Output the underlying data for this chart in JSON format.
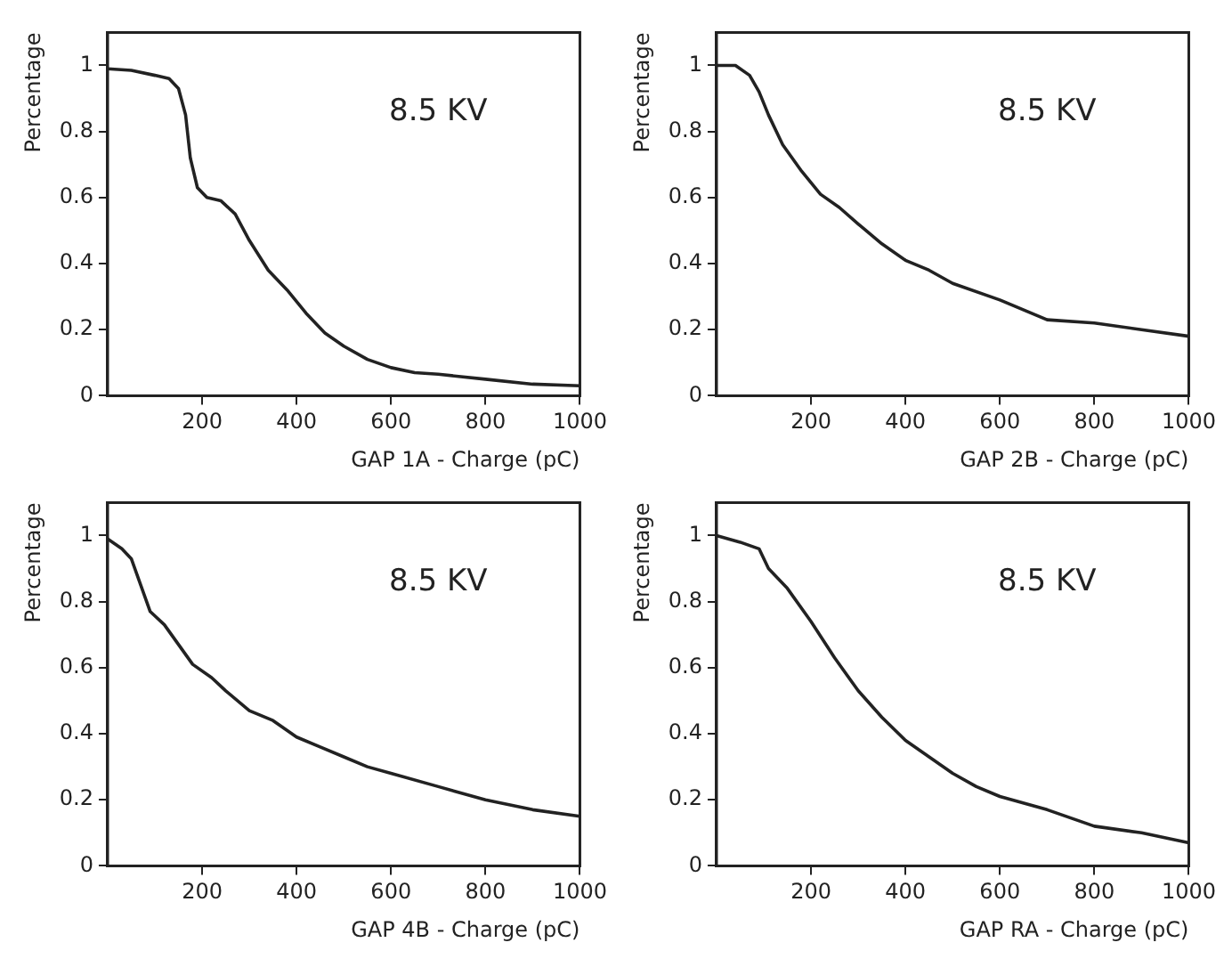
{
  "chart_data": [
    {
      "type": "line",
      "xlabel": "GAP 1A - Charge (pC)",
      "ylabel": "Percentage",
      "annotations": [
        "8.5 KV"
      ],
      "xlim": [
        0,
        1000
      ],
      "xticks": [
        200,
        400,
        600,
        800,
        1000
      ],
      "ylim": [
        0,
        1.1
      ],
      "yticks": [
        0,
        0.2,
        0.4,
        0.6,
        0.8,
        1
      ],
      "marker": "none",
      "legend": false,
      "series": [
        {
          "color": "#222222",
          "x": [
            0,
            50,
            100,
            130,
            150,
            165,
            175,
            190,
            210,
            240,
            270,
            300,
            340,
            380,
            420,
            460,
            500,
            550,
            600,
            650,
            700,
            800,
            900,
            1000
          ],
          "values": [
            0.99,
            0.985,
            0.97,
            0.96,
            0.93,
            0.85,
            0.72,
            0.63,
            0.6,
            0.59,
            0.55,
            0.47,
            0.38,
            0.32,
            0.25,
            0.19,
            0.15,
            0.11,
            0.085,
            0.07,
            0.065,
            0.05,
            0.035,
            0.03
          ]
        }
      ]
    },
    {
      "type": "line",
      "xlabel": "GAP 2B - Charge (pC)",
      "ylabel": "Percentage",
      "annotations": [
        "8.5 KV"
      ],
      "xlim": [
        0,
        1000
      ],
      "xticks": [
        200,
        400,
        600,
        800,
        1000
      ],
      "ylim": [
        0,
        1.1
      ],
      "yticks": [
        0,
        0.2,
        0.4,
        0.6,
        0.8,
        1
      ],
      "marker": "none",
      "legend": false,
      "series": [
        {
          "color": "#222222",
          "x": [
            0,
            40,
            70,
            90,
            110,
            140,
            180,
            220,
            260,
            300,
            350,
            400,
            450,
            500,
            600,
            700,
            800,
            900,
            1000
          ],
          "values": [
            1,
            1,
            0.97,
            0.92,
            0.85,
            0.76,
            0.68,
            0.61,
            0.57,
            0.52,
            0.46,
            0.41,
            0.38,
            0.34,
            0.29,
            0.23,
            0.22,
            0.2,
            0.18
          ]
        }
      ]
    },
    {
      "type": "line",
      "xlabel": "GAP 4B - Charge (pC)",
      "ylabel": "Percentage",
      "annotations": [
        "8.5 KV"
      ],
      "xlim": [
        0,
        1000
      ],
      "xticks": [
        200,
        400,
        600,
        800,
        1000
      ],
      "ylim": [
        0,
        1.1
      ],
      "yticks": [
        0,
        0.2,
        0.4,
        0.6,
        0.8,
        1
      ],
      "marker": "none",
      "legend": false,
      "series": [
        {
          "color": "#222222",
          "x": [
            0,
            30,
            50,
            70,
            90,
            120,
            150,
            180,
            220,
            250,
            300,
            350,
            400,
            450,
            500,
            550,
            600,
            700,
            800,
            900,
            1000
          ],
          "values": [
            0.99,
            0.96,
            0.93,
            0.85,
            0.77,
            0.73,
            0.67,
            0.61,
            0.57,
            0.53,
            0.47,
            0.44,
            0.39,
            0.36,
            0.33,
            0.3,
            0.28,
            0.24,
            0.2,
            0.17,
            0.15
          ]
        }
      ]
    },
    {
      "type": "line",
      "xlabel": "GAP RA - Charge (pC)",
      "ylabel": "Percentage",
      "annotations": [
        "8.5 KV"
      ],
      "xlim": [
        0,
        1000
      ],
      "xticks": [
        200,
        400,
        600,
        800,
        1000
      ],
      "ylim": [
        0,
        1.1
      ],
      "yticks": [
        0,
        0.2,
        0.4,
        0.6,
        0.8,
        1
      ],
      "marker": "none",
      "legend": false,
      "series": [
        {
          "color": "#222222",
          "x": [
            0,
            50,
            90,
            110,
            150,
            200,
            250,
            300,
            350,
            400,
            450,
            500,
            550,
            600,
            700,
            800,
            900,
            1000
          ],
          "values": [
            1,
            0.98,
            0.96,
            0.9,
            0.84,
            0.74,
            0.63,
            0.53,
            0.45,
            0.38,
            0.33,
            0.28,
            0.24,
            0.21,
            0.17,
            0.12,
            0.1,
            0.07
          ]
        }
      ]
    }
  ]
}
